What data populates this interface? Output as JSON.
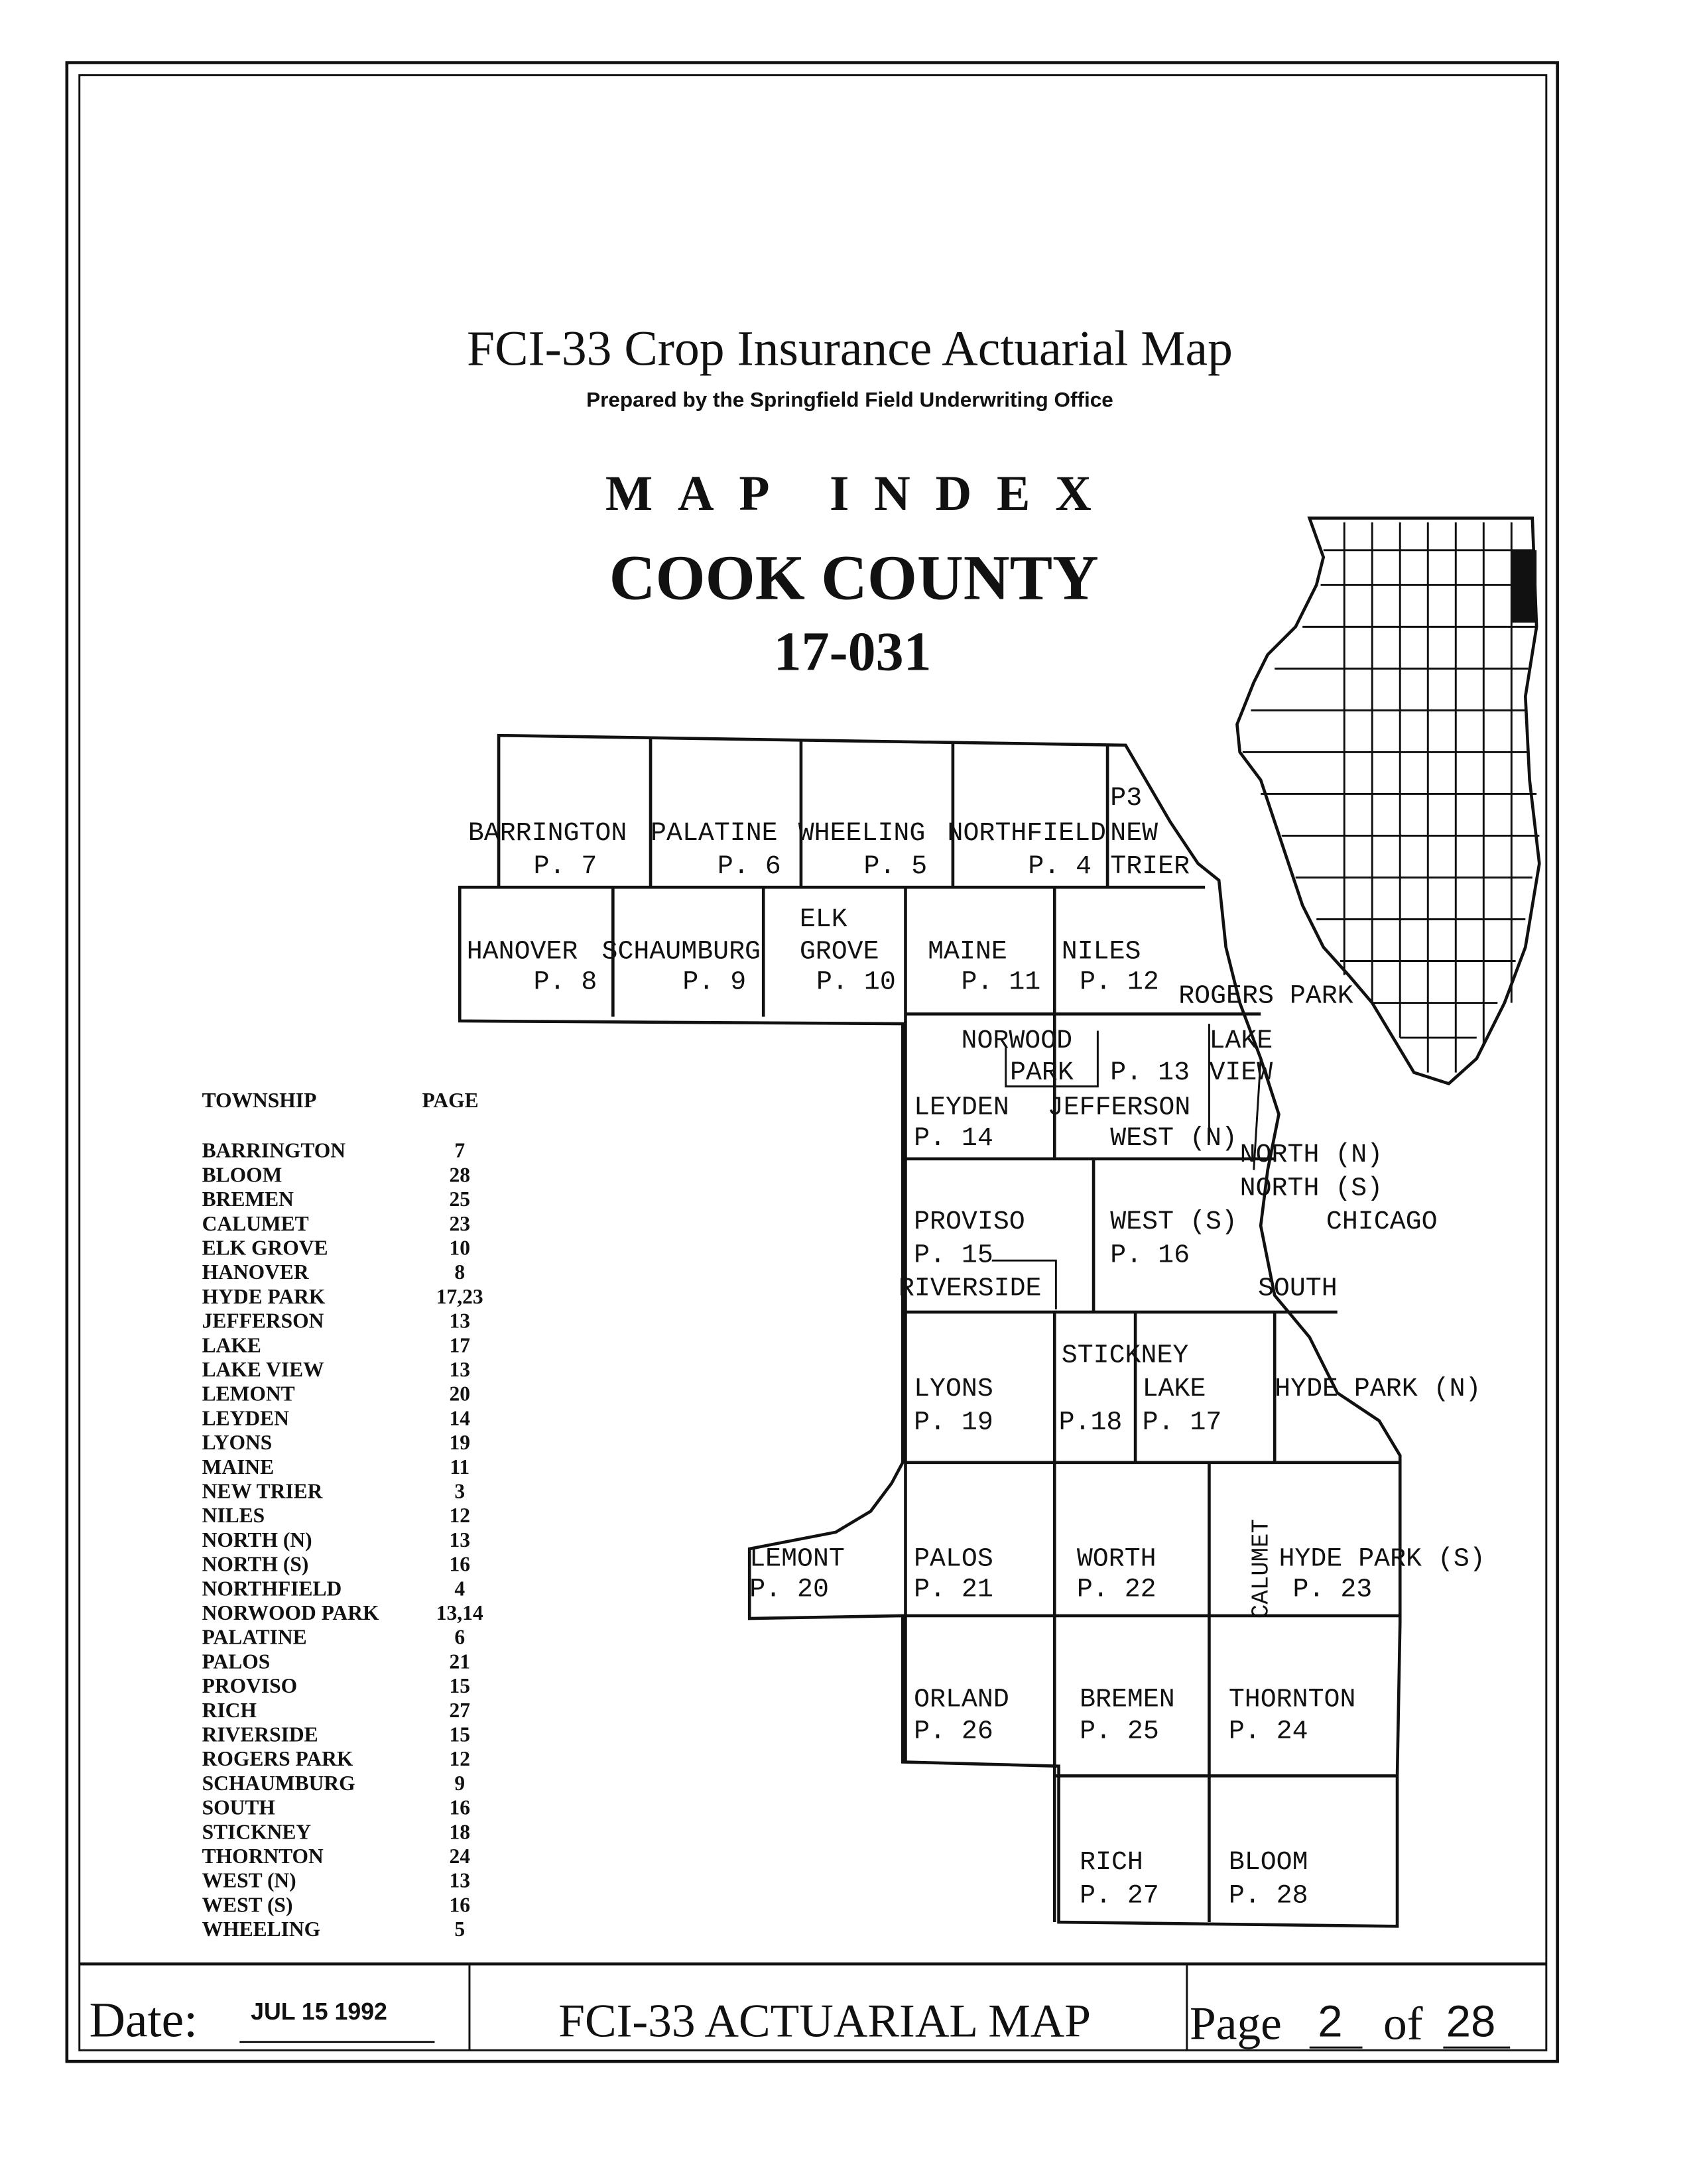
{
  "header": {
    "title": "FCI-33 Crop Insurance Actuarial Map",
    "subtitle": "Prepared by the Springfield Field Underwriting Office",
    "index_label": "MAP INDEX",
    "county": "COOK COUNTY",
    "county_code": "17-031"
  },
  "index_table": {
    "col_township": "TOWNSHIP",
    "col_page": "PAGE",
    "rows": [
      {
        "township": "BARRINGTON",
        "page": "7"
      },
      {
        "township": "BLOOM",
        "page": "28"
      },
      {
        "township": "BREMEN",
        "page": "25"
      },
      {
        "township": "CALUMET",
        "page": "23"
      },
      {
        "township": "ELK GROVE",
        "page": "10"
      },
      {
        "township": "HANOVER",
        "page": "8"
      },
      {
        "township": "HYDE PARK",
        "page": "17,23"
      },
      {
        "township": "JEFFERSON",
        "page": "13"
      },
      {
        "township": "LAKE",
        "page": "17"
      },
      {
        "township": "LAKE VIEW",
        "page": "13"
      },
      {
        "township": "LEMONT",
        "page": "20"
      },
      {
        "township": "LEYDEN",
        "page": "14"
      },
      {
        "township": "LYONS",
        "page": "19"
      },
      {
        "township": "MAINE",
        "page": "11"
      },
      {
        "township": "NEW TRIER",
        "page": "3"
      },
      {
        "township": "NILES",
        "page": "12"
      },
      {
        "township": "NORTH (N)",
        "page": "13"
      },
      {
        "township": "NORTH (S)",
        "page": "16"
      },
      {
        "township": "NORTHFIELD",
        "page": "4"
      },
      {
        "township": "NORWOOD PARK",
        "page": "13,14"
      },
      {
        "township": "PALATINE",
        "page": "6"
      },
      {
        "township": "PALOS",
        "page": "21"
      },
      {
        "township": "PROVISO",
        "page": "15"
      },
      {
        "township": "RICH",
        "page": "27"
      },
      {
        "township": "RIVERSIDE",
        "page": "15"
      },
      {
        "township": "ROGERS PARK",
        "page": "12"
      },
      {
        "township": "SCHAUMBURG",
        "page": "9"
      },
      {
        "township": "SOUTH",
        "page": "16"
      },
      {
        "township": "STICKNEY",
        "page": "18"
      },
      {
        "township": "THORNTON",
        "page": "24"
      },
      {
        "township": "WEST (N)",
        "page": "13"
      },
      {
        "township": "WEST (S)",
        "page": "16"
      },
      {
        "township": "WHEELING",
        "page": "5"
      }
    ]
  },
  "map": {
    "labels": {
      "barrington": "BARRINGTON",
      "p7": "P. 7",
      "palatine": "PALATINE",
      "p6": "P. 6",
      "wheeling": "WHEELING",
      "p5": "P. 5",
      "northfield": "NORTHFIELD",
      "p4": "P. 4",
      "p3": "P3",
      "new": "NEW",
      "trier": "TRIER",
      "hanover": "HANOVER",
      "p8": "P. 8",
      "schaumburg": "SCHAUMBURG",
      "p9": "P. 9",
      "elk": "ELK",
      "grove": "GROVE",
      "p10": "P. 10",
      "maine": "MAINE",
      "p11": "P. 11",
      "niles": "NILES",
      "p12": "P. 12",
      "rogers_park": "ROGERS PARK",
      "norwood": "NORWOOD",
      "park": "PARK",
      "p13": "P. 13",
      "lake": "LAKE",
      "view": "VIEW",
      "leyden": "LEYDEN",
      "p14": "P. 14",
      "jefferson": "JEFFERSON",
      "west_n": "WEST (N)",
      "north_n": "NORTH (N)",
      "north_s": "NORTH (S)",
      "proviso": "PROVISO",
      "p15": "P. 15",
      "west_s": "WEST (S)",
      "p16": "P. 16",
      "chicago": "CHICAGO",
      "riverside": "RIVERSIDE",
      "south": "SOUTH",
      "stickney": "STICKNEY",
      "lyons": "LYONS",
      "p19": "P. 19",
      "p18": "P.18",
      "lake2": "LAKE",
      "p17": "P. 17",
      "hyde_park_n": "HYDE PARK (N)",
      "lemont": "LEMONT",
      "p20": "P. 20",
      "palos": "PALOS",
      "p21": "P. 21",
      "worth": "WORTH",
      "p22": "P. 22",
      "calumet": "CALUMET",
      "hyde_park_s": "HYDE PARK (S)",
      "p23": "P. 23",
      "orland": "ORLAND",
      "p26": "P. 26",
      "bremen": "BREMEN",
      "p25": "P. 25",
      "thornton": "THORNTON",
      "p24": "P. 24",
      "rich": "RICH",
      "p27": "P. 27",
      "bloom": "BLOOM",
      "p28": "P. 28"
    },
    "inset": "Illinois state locator map with Cook County highlighted"
  },
  "footer": {
    "date_label": "Date:",
    "date_value": "JUL 15 1992",
    "center_title": "FCI-33 ACTUARIAL MAP",
    "page_label": "Page",
    "page_current": "2",
    "of_label": "of",
    "page_total": "28"
  }
}
